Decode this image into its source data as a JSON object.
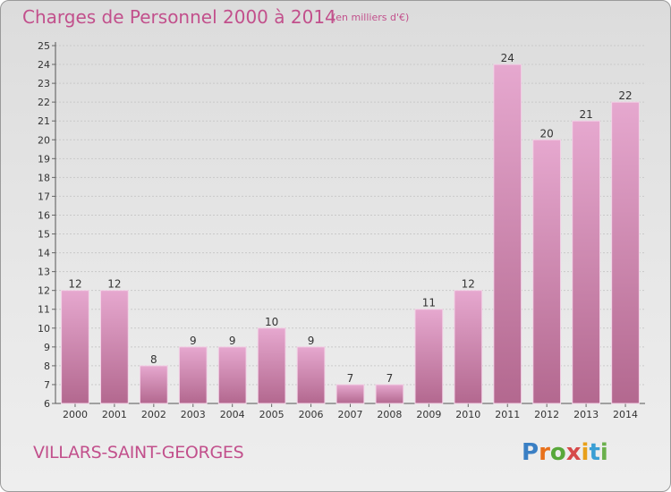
{
  "header": {
    "title": "Charges de Personnel 2000 à 2014",
    "subtitle": "(en milliers d'€)"
  },
  "footer": {
    "place": "VILLARS-SAINT-GEORGES",
    "logo": {
      "text": "Proxiti",
      "colors": [
        "#3a7fc4",
        "#e8701a",
        "#58a83a",
        "#d64a4a",
        "#e8a01a",
        "#3a9fd4",
        "#6ab04c"
      ]
    }
  },
  "colors": {
    "text_accent": "#c2508c",
    "bar_top": "#e6a8cf",
    "bar_bottom": "#b3688f",
    "bar_edge": "#f2d2e6"
  },
  "chart_data": {
    "type": "bar",
    "categories": [
      "2000",
      "2001",
      "2002",
      "2003",
      "2004",
      "2005",
      "2006",
      "2007",
      "2008",
      "2009",
      "2010",
      "2011",
      "2012",
      "2013",
      "2014"
    ],
    "values": [
      12,
      12,
      8,
      9,
      9,
      10,
      9,
      7,
      7,
      11,
      12,
      24,
      20,
      21,
      22
    ],
    "title": "Charges de Personnel 2000 à 2014",
    "subtitle": "(en milliers d'€)",
    "xlabel": "",
    "ylabel": "",
    "ylim": [
      6,
      25
    ],
    "yticks": [
      6,
      7,
      8,
      9,
      10,
      11,
      12,
      13,
      14,
      15,
      16,
      17,
      18,
      19,
      20,
      21,
      22,
      23,
      24,
      25
    ],
    "grid": true,
    "legend": "none"
  }
}
